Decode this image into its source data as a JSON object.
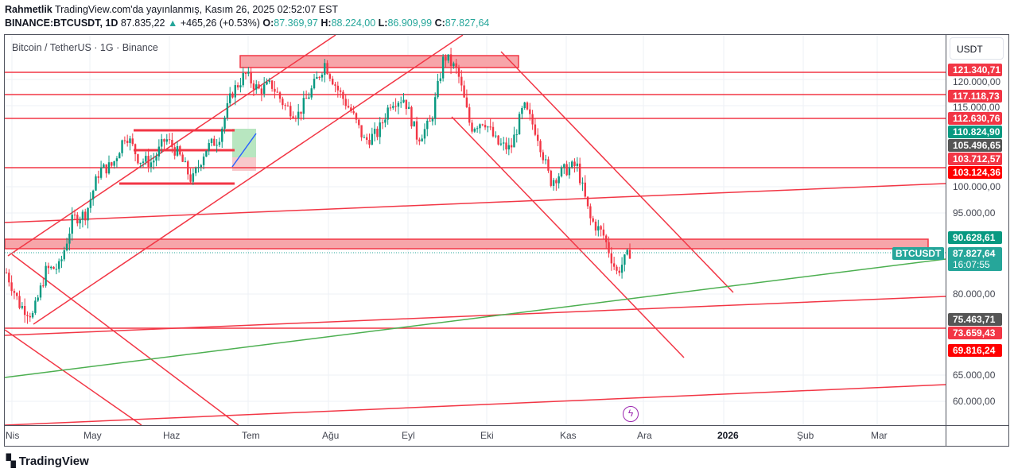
{
  "header": {
    "author": "Rahmetlik",
    "published": "TradingView.com'da yayınlanmış, Kasım 26, 2025 02:52:07 EST",
    "symbol": "BINANCE:BTCUSDT, 1D",
    "last": "87.835,22",
    "change": "+465,26 (+0.53%)",
    "o_label": "O:",
    "o": "87.369,97",
    "h_label": "H:",
    "h": "88.224,00",
    "l_label": "L:",
    "l": "86.909,99",
    "c_label": "C:",
    "c": "87.827,64"
  },
  "legend": "Bitcoin / TetherUS · 1G · Binance",
  "currency": "USDT",
  "price_ticks": [
    "120.000,00",
    "115.000,00",
    "100.000,00",
    "95.000,00",
    "80.000,00",
    "65.000,00",
    "60.000,00"
  ],
  "badges": [
    {
      "text": "121.340,71",
      "color": "#f23645",
      "price": 121340.71
    },
    {
      "text": "117.118,73",
      "color": "#f23645",
      "price": 117118.73
    },
    {
      "text": "112.630,76",
      "color": "#f23645",
      "price": 112630.76
    },
    {
      "text": "110.824,90",
      "color": "#089981",
      "price": 110824.9
    },
    {
      "text": "105.496,65",
      "color": "#555555",
      "price": 105496.65
    },
    {
      "text": "103.712,57",
      "color": "#f23645",
      "price": 103712.57
    },
    {
      "text": "103.124,36",
      "color": "#ff0000",
      "price": 103124.36
    },
    {
      "text": "90.628,61",
      "color": "#089981",
      "price": 90628.61
    },
    {
      "text": "75.463,71",
      "color": "#555555",
      "price": 75463.71
    },
    {
      "text": "73.659,43",
      "color": "#f23645",
      "price": 73659.43
    },
    {
      "text": "69.816,24",
      "color": "#ff0000",
      "price": 69816.24
    }
  ],
  "current": {
    "symbol": "BTCUSDT",
    "price": "87.827,64",
    "countdown": "16:07:55"
  },
  "time_labels": [
    "Nis",
    "May",
    "Haz",
    "Tem",
    "Ağu",
    "Eyl",
    "Eki",
    "Kas",
    "Ara",
    "2026",
    "Şub",
    "Mar"
  ],
  "brand": "TradingView",
  "chart_data": {
    "type": "candlestick",
    "note": "approximate daily closes key points (USDT)",
    "key_closes": [
      84000,
      78000,
      76000,
      84500,
      85000,
      94000,
      95000,
      103000,
      104000,
      110000,
      105000,
      104500,
      109000,
      106000,
      101000,
      107000,
      109000,
      117500,
      121000,
      118000,
      119000,
      115000,
      113500,
      118000,
      123000,
      118000,
      114000,
      108500,
      110000,
      116000,
      116500,
      109000,
      112000,
      124500,
      121500,
      111000,
      112500,
      108000,
      107000,
      115000,
      110000,
      101000,
      103000,
      104000,
      94000,
      91000,
      84000,
      87800
    ]
  }
}
